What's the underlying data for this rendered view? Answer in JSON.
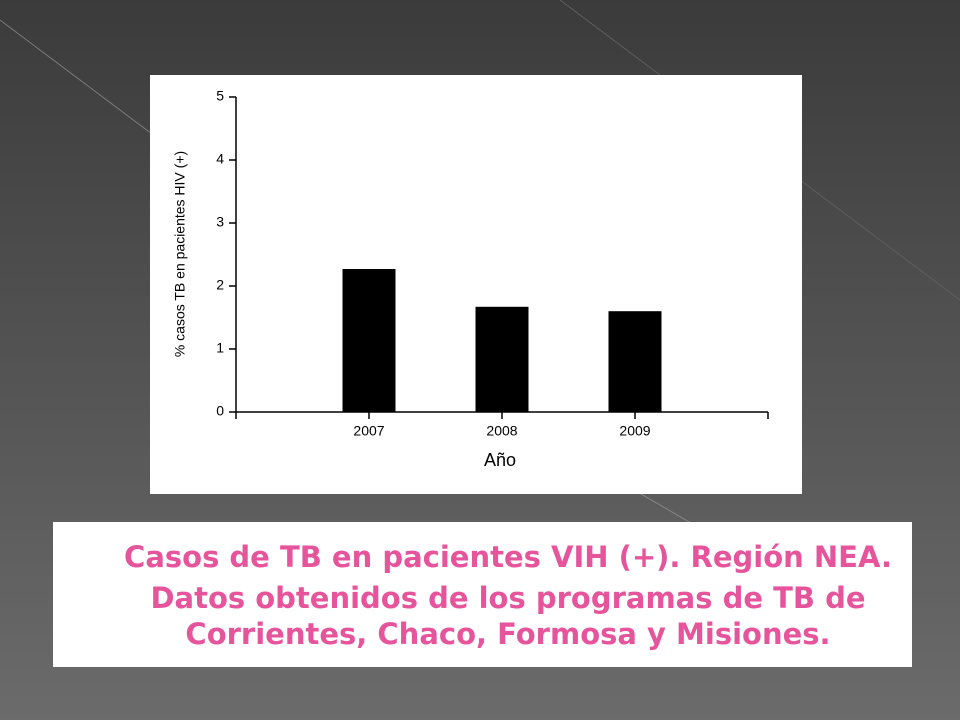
{
  "chart_data": {
    "type": "bar",
    "categories": [
      "2007",
      "2008",
      "2009"
    ],
    "values": [
      2.27,
      1.67,
      1.6
    ],
    "color": "#000000",
    "ylim": [
      0,
      5
    ],
    "yticks": [
      0,
      1,
      2,
      3,
      4,
      5
    ],
    "ylabel": "% casos TB en pacientes HIV (+)",
    "xlabel": "Año"
  },
  "caption": {
    "lines": [
      "Casos de TB en pacientes VIH (+). Región NEA.",
      "Datos obtenidos de los programas de TB de",
      "Corrientes, Chaco, Formosa y Misiones."
    ]
  }
}
